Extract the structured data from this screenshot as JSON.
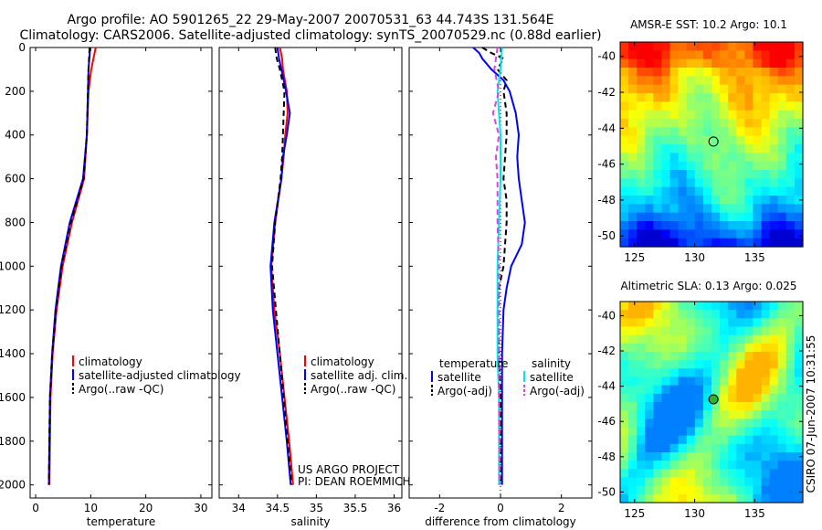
{
  "title": {
    "line1": "Argo profile: AO 5901265_22 29-May-2007 20070531_63 44.743S 131.564E",
    "line2": "Climatology: CARS2006. Satellite-adjusted climatology: synTS_20070529.nc (0.88d earlier)"
  },
  "colors": {
    "red": "#ff0000",
    "blue": "#0000ff",
    "black": "#000000",
    "cyan": "#00e5ee",
    "magenta": "#e040e0"
  },
  "chart_data": [
    {
      "type": "line",
      "id": "temperature",
      "xlabel": "temperature",
      "ylabel": "",
      "xlim": [
        -1,
        32
      ],
      "ylim": [
        2060,
        0
      ],
      "y_reversed": true,
      "xticks": [
        0,
        10,
        20,
        30
      ],
      "xticklabels": [
        "0",
        "10",
        "20",
        "30"
      ],
      "yticks": [
        0,
        200,
        400,
        600,
        800,
        1000,
        1200,
        1400,
        1600,
        1800,
        2000
      ],
      "yticklabels": [
        "0",
        "200",
        "400",
        "600",
        "800",
        "1000",
        "1200",
        "1400",
        "1600",
        "1800",
        "2000"
      ],
      "legend": {
        "position": "lower-right",
        "entries": [
          "climatology",
          "satellite-adjusted climatology",
          "Argo(..raw -QC)"
        ]
      },
      "series": [
        {
          "name": "climatology",
          "color": "red",
          "dash": false,
          "depth": [
            0,
            100,
            200,
            400,
            600,
            800,
            1000,
            1200,
            1400,
            1600,
            1800,
            2000
          ],
          "values": [
            10.9,
            10.1,
            9.6,
            9.3,
            8.8,
            6.6,
            4.9,
            3.8,
            3.1,
            2.7,
            2.6,
            2.5
          ]
        },
        {
          "name": "satellite-adjusted climatology",
          "color": "blue",
          "dash": false,
          "depth": [
            0,
            100,
            200,
            400,
            600,
            800,
            1000,
            1200,
            1400,
            1600,
            1800,
            2000
          ],
          "values": [
            9.9,
            9.6,
            9.5,
            9.3,
            8.6,
            6.2,
            4.6,
            3.6,
            3.0,
            2.6,
            2.5,
            2.4
          ]
        },
        {
          "name": "Argo(..raw -QC)",
          "color": "black",
          "dash": true,
          "depth": [
            0,
            100,
            200,
            400,
            600,
            800,
            1000,
            1200,
            1400,
            1600,
            1800,
            2000
          ],
          "values": [
            9.8,
            9.6,
            9.5,
            9.3,
            8.7,
            6.4,
            4.7,
            3.7,
            3.0,
            2.6,
            2.5,
            2.4
          ]
        }
      ]
    },
    {
      "type": "line",
      "id": "salinity",
      "xlabel": "salinity",
      "ylabel": "",
      "xlim": [
        33.75,
        36.1
      ],
      "ylim": [
        2060,
        0
      ],
      "y_reversed": true,
      "xticks": [
        34,
        34.5,
        35,
        35.5,
        36
      ],
      "xticklabels": [
        "34",
        "34.5",
        "35",
        "35.5",
        "36"
      ],
      "legend": {
        "position": "lower-right",
        "entries": [
          "climatology",
          "satellite adj. clim.",
          "Argo(..raw -QC)"
        ]
      },
      "annotation": [
        "US ARGO PROJECT",
        "PI: DEAN ROEMMICH"
      ],
      "series": [
        {
          "name": "climatology",
          "color": "red",
          "dash": false,
          "depth": [
            0,
            50,
            100,
            200,
            300,
            400,
            500,
            600,
            800,
            1000,
            1200,
            1400,
            1600,
            1800,
            2000
          ],
          "values": [
            34.53,
            34.56,
            34.57,
            34.62,
            34.63,
            34.6,
            34.58,
            34.55,
            34.47,
            34.42,
            34.46,
            34.53,
            34.59,
            34.65,
            34.7
          ]
        },
        {
          "name": "satellite adj. clim.",
          "color": "blue",
          "dash": false,
          "depth": [
            0,
            50,
            100,
            200,
            300,
            400,
            500,
            600,
            800,
            1000,
            1200,
            1400,
            1600,
            1800,
            2000
          ],
          "values": [
            34.5,
            34.52,
            34.55,
            34.61,
            34.66,
            34.62,
            34.57,
            34.55,
            34.46,
            34.41,
            34.44,
            34.5,
            34.56,
            34.62,
            34.67
          ]
        },
        {
          "name": "Argo(..raw -QC)",
          "color": "black",
          "dash": true,
          "depth": [
            0,
            50,
            100,
            200,
            300,
            400,
            500,
            600,
            800,
            1000,
            1200,
            1400,
            1600,
            1800,
            2000
          ],
          "values": [
            34.47,
            34.49,
            34.53,
            34.59,
            34.58,
            34.57,
            34.56,
            34.54,
            34.47,
            34.43,
            34.48,
            34.53,
            34.58,
            34.63,
            34.68
          ]
        }
      ]
    },
    {
      "type": "line",
      "id": "difference",
      "xlabel": "difference from climatology",
      "ylabel": "",
      "xlim": [
        -3.0,
        3.0
      ],
      "ylim": [
        2060,
        0
      ],
      "y_reversed": true,
      "xticks": [
        -2,
        0,
        2
      ],
      "xticklabels": [
        "-2",
        "0",
        "2"
      ],
      "zero_line": true,
      "legend": {
        "position": "lower",
        "groups": [
          {
            "title": "temperature",
            "entries": [
              "satellite",
              "Argo(-adj)"
            ]
          },
          {
            "title": "salinity",
            "entries": [
              "satellite",
              "Argo(-adj)"
            ]
          }
        ]
      },
      "series": [
        {
          "name": "temperature satellite",
          "color": "blue",
          "dash": false,
          "depth": [
            0,
            25,
            50,
            100,
            150,
            200,
            300,
            400,
            500,
            600,
            700,
            800,
            900,
            1000,
            1100,
            1200,
            1400,
            1600,
            1800,
            2000
          ],
          "values": [
            -0.9,
            -0.7,
            -0.6,
            -0.3,
            0.1,
            0.3,
            0.5,
            0.6,
            0.55,
            0.6,
            0.7,
            0.8,
            0.7,
            0.35,
            0.2,
            0.1,
            0.05,
            0.05,
            0.05,
            0.05
          ]
        },
        {
          "name": "temperature Argo(-adj)",
          "color": "black",
          "dash": true,
          "depth": [
            0,
            25,
            50,
            100,
            150,
            200,
            300,
            400,
            500,
            600,
            700,
            800,
            900,
            1000,
            1100,
            1200,
            1400,
            1600,
            1800,
            2000
          ],
          "values": [
            -0.6,
            -0.3,
            0.1,
            -0.1,
            0.2,
            0.1,
            0.2,
            0.2,
            0.15,
            0.1,
            0.2,
            0.2,
            0.15,
            0.1,
            -0.05,
            -0.1,
            -0.05,
            0.0,
            0.0,
            0.0
          ]
        },
        {
          "name": "salinity satellite",
          "color": "cyan",
          "dash": false,
          "depth": [
            0,
            100,
            200,
            300,
            400,
            600,
            800,
            1000,
            1200,
            1400,
            1600,
            1800,
            2000
          ],
          "values": [
            0.05,
            0.0,
            -0.1,
            -0.05,
            0.0,
            0.0,
            -0.05,
            -0.1,
            -0.1,
            -0.1,
            -0.05,
            -0.05,
            -0.05
          ]
        },
        {
          "name": "salinity Argo(-adj)",
          "color": "magenta",
          "dash": true,
          "depth": [
            0,
            100,
            200,
            300,
            400,
            500,
            600,
            800,
            1000,
            1200,
            1400,
            1600,
            1800,
            2000
          ],
          "values": [
            -0.1,
            -0.2,
            -0.05,
            -0.25,
            -0.05,
            -0.15,
            -0.1,
            -0.1,
            -0.05,
            -0.05,
            -0.05,
            -0.05,
            -0.02,
            -0.02
          ]
        }
      ]
    },
    {
      "type": "heatmap",
      "id": "sst_map",
      "title": "AMSR-E SST: 10.2 Argo: 10.1",
      "xlim": [
        123.8,
        139
      ],
      "ylim": [
        -50.6,
        -39.2
      ],
      "xticks": [
        125,
        130,
        135
      ],
      "xticklabels": [
        "125",
        "130",
        "135"
      ],
      "yticks": [
        -40,
        -42,
        -44,
        -46,
        -48,
        -50
      ],
      "yticklabels": [
        "-40",
        "-42",
        "-44",
        "-46",
        "-48",
        "-50"
      ],
      "marker": {
        "lon": 131.564,
        "lat": -44.743,
        "fill": "none"
      }
    },
    {
      "type": "heatmap",
      "id": "sla_map",
      "title": "Altimetric SLA: 0.13 Argo: 0.025",
      "xlim": [
        123.8,
        139
      ],
      "ylim": [
        -50.6,
        -39.2
      ],
      "xticks": [
        125,
        130,
        135
      ],
      "xticklabels": [
        "125",
        "130",
        "135"
      ],
      "yticks": [
        -40,
        -42,
        -44,
        -46,
        -48,
        -50
      ],
      "yticklabels": [
        "-40",
        "-42",
        "-44",
        "-46",
        "-48",
        "-50"
      ],
      "marker": {
        "lon": 131.564,
        "lat": -44.743,
        "fill": "green"
      }
    }
  ],
  "footer": {
    "stamp": "CSIRO 07-Jun-2007 10:31:55"
  }
}
